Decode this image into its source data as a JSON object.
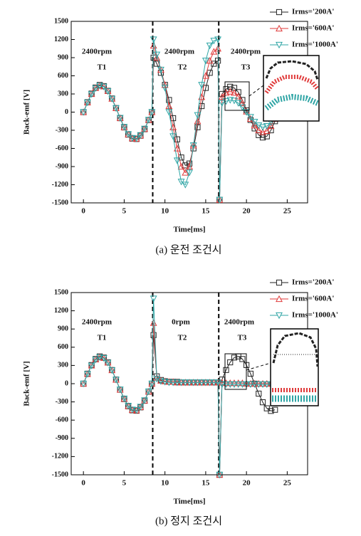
{
  "chart_data": [
    {
      "type": "line",
      "caption": "(a) 운전 조건시",
      "x_label": "Time[ms]",
      "y_label": "Back-emf [V]",
      "annotations": [
        "2400rpm",
        "T1",
        "2400rpm",
        "T2",
        "2400rpm",
        "T3"
      ],
      "x": [
        0,
        0.5,
        1,
        1.5,
        2,
        2.5,
        3,
        3.5,
        4,
        4.5,
        5,
        5.5,
        6,
        6.5,
        7,
        7.5,
        8,
        8.4,
        8.6,
        9,
        9.5,
        10,
        10.5,
        11,
        11.5,
        12,
        12.5,
        13,
        13.5,
        14,
        14.5,
        15,
        15.5,
        16,
        16.5,
        16.7,
        17,
        17.5,
        18,
        18.5,
        19,
        19.5,
        20,
        20.5,
        21,
        21.5,
        22,
        22.5,
        23,
        23.5,
        24
      ],
      "series": [
        {
          "name": "Irms='200A'",
          "color": "#222222",
          "marker": "square",
          "values": [
            0,
            164,
            306,
            406,
            449,
            430,
            352,
            225,
            67,
            -100,
            -253,
            -372,
            -439,
            -445,
            -390,
            -282,
            -132,
            0,
            900,
            800,
            650,
            450,
            200,
            -100,
            -450,
            -750,
            -880,
            -850,
            -600,
            -250,
            100,
            400,
            650,
            800,
            850,
            -1450,
            300,
            380,
            420,
            400,
            330,
            200,
            30,
            -130,
            -270,
            -380,
            -420,
            -400,
            -300,
            -150,
            0
          ]
        },
        {
          "name": "Irms='600A'",
          "color": "#e03a3a",
          "marker": "triangle",
          "values": [
            0,
            160,
            300,
            400,
            440,
            425,
            348,
            222,
            66,
            -98,
            -250,
            -368,
            -432,
            -440,
            -385,
            -278,
            -130,
            0,
            1100,
            900,
            700,
            450,
            100,
            -250,
            -600,
            -900,
            -1000,
            -900,
            -550,
            -150,
            250,
            600,
            850,
            1000,
            1050,
            -1450,
            250,
            320,
            340,
            320,
            260,
            150,
            10,
            -110,
            -220,
            -300,
            -330,
            -310,
            -230,
            -110,
            0
          ]
        },
        {
          "name": "Irms='1000A'",
          "color": "#2fa5a5",
          "marker": "down-triangle",
          "values": [
            0,
            158,
            296,
            395,
            435,
            420,
            344,
            220,
            65,
            -96,
            -246,
            -364,
            -428,
            -436,
            -380,
            -275,
            -128,
            0,
            1200,
            950,
            700,
            400,
            0,
            -400,
            -800,
            -1150,
            -1200,
            -1000,
            -550,
            -50,
            450,
            850,
            1100,
            1180,
            1200,
            -1450,
            150,
            180,
            200,
            190,
            150,
            80,
            0,
            -80,
            -160,
            -220,
            -250,
            -230,
            -170,
            -80,
            0
          ]
        }
      ],
      "vlines": [
        8.5,
        16.6
      ],
      "xlim": [
        -1.5,
        27.5
      ],
      "xticks": [
        0,
        5,
        10,
        15,
        20,
        25
      ],
      "ylim": [
        -1500,
        1500
      ],
      "yticks": [
        -1500,
        -1200,
        -900,
        -600,
        -300,
        0,
        300,
        600,
        900,
        1200,
        1500
      ]
    },
    {
      "type": "line",
      "caption": "(b) 정지 조건시",
      "x_label": "Time[ms]",
      "y_label": "Back-emf [V]",
      "annotations": [
        "2400rpm",
        "T1",
        "0rpm",
        "T2",
        "2400rpm",
        "T3"
      ],
      "x": [
        0,
        0.5,
        1,
        1.5,
        2,
        2.5,
        3,
        3.5,
        4,
        4.5,
        5,
        5.5,
        6,
        6.5,
        7,
        7.5,
        8,
        8.4,
        8.6,
        9,
        9.5,
        10,
        10.5,
        11,
        11.5,
        12,
        12.5,
        13,
        13.5,
        14,
        14.5,
        15,
        15.5,
        16,
        16.5,
        16.7,
        17,
        17.5,
        18,
        18.5,
        19,
        19.5,
        20,
        20.5,
        21,
        21.5,
        22,
        22.5,
        23,
        23.5,
        24,
        24.5,
        25
      ],
      "series": [
        {
          "name": "Irms='200A'",
          "color": "#222222",
          "marker": "square",
          "values": [
            0,
            164,
            306,
            406,
            449,
            430,
            352,
            225,
            67,
            -100,
            -253,
            -372,
            -439,
            -445,
            -390,
            -282,
            -132,
            0,
            800,
            120,
            60,
            40,
            30,
            30,
            30,
            20,
            20,
            20,
            20,
            20,
            20,
            20,
            20,
            20,
            20,
            -1500,
            67,
            225,
            352,
            430,
            449,
            406,
            306,
            164,
            0,
            -164,
            -306,
            -406,
            -449,
            -430,
            null,
            null,
            null
          ]
        },
        {
          "name": "Irms='600A'",
          "color": "#e03a3a",
          "marker": "triangle",
          "values": [
            0,
            160,
            300,
            400,
            440,
            425,
            348,
            222,
            66,
            -98,
            -250,
            -368,
            -432,
            -440,
            -385,
            -278,
            -130,
            0,
            1000,
            100,
            50,
            40,
            30,
            30,
            20,
            20,
            20,
            20,
            20,
            20,
            20,
            20,
            20,
            20,
            20,
            -1500,
            20,
            10,
            10,
            10,
            10,
            10,
            0,
            0,
            0,
            0,
            0,
            0,
            0,
            0,
            0,
            0,
            0
          ]
        },
        {
          "name": "Irms='1000A'",
          "color": "#2fa5a5",
          "marker": "down-triangle",
          "values": [
            0,
            158,
            296,
            395,
            435,
            420,
            344,
            220,
            65,
            -96,
            -246,
            -364,
            -428,
            -436,
            -380,
            -275,
            -128,
            0,
            1400,
            80,
            40,
            30,
            20,
            20,
            20,
            20,
            20,
            20,
            20,
            20,
            20,
            20,
            20,
            20,
            20,
            -1500,
            -10,
            -10,
            -10,
            -10,
            -10,
            -10,
            -10,
            -10,
            -10,
            -10,
            -10,
            -10,
            -10,
            -10,
            -10,
            -10,
            -10
          ]
        }
      ],
      "vlines": [
        8.5,
        16.6
      ],
      "xlim": [
        -1.5,
        27.5
      ],
      "xticks": [
        0,
        5,
        10,
        15,
        20,
        25
      ],
      "ylim": [
        -1500,
        1500
      ],
      "yticks": [
        -1500,
        -1200,
        -900,
        -600,
        -300,
        0,
        300,
        600,
        900,
        1200,
        1500
      ]
    }
  ]
}
